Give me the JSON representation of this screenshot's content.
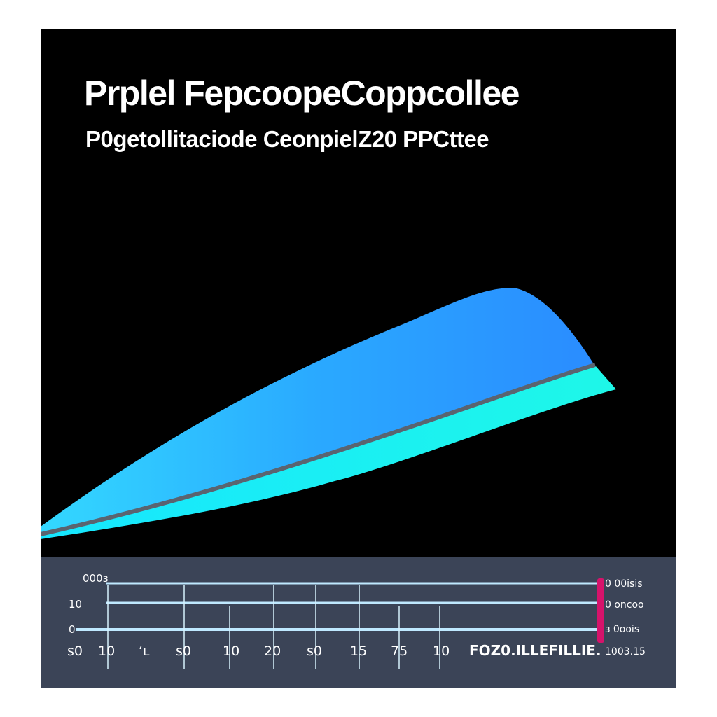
{
  "chart_data": {
    "type": "area",
    "title": "Prplel FepcoopeCoppcollee",
    "subtitle": "P0getollitaciode CeonpielZ20 PPCttee",
    "colors": {
      "upper_band": "#2aa9ff",
      "lower_band": "#19f3f0",
      "divider": "#5a6470",
      "scale_panel": "#3b4457",
      "grid_line": "#bfe9ff",
      "marker": "#d6136b"
    },
    "scale": {
      "row_labels": [
        "000з",
        "10",
        "0"
      ],
      "right_labels": [
        "0 00іsіѕ",
        "0 оnсоо",
        "з 0ооіs"
      ],
      "x_ticks": [
        "s0",
        "10",
        "‘ʟ",
        "s0",
        "10",
        "20",
        "s0",
        "15",
        "75",
        "10"
      ],
      "footer_label": "FOZ0.ILLEFILLIE.",
      "footer_value": "1003.15"
    }
  }
}
